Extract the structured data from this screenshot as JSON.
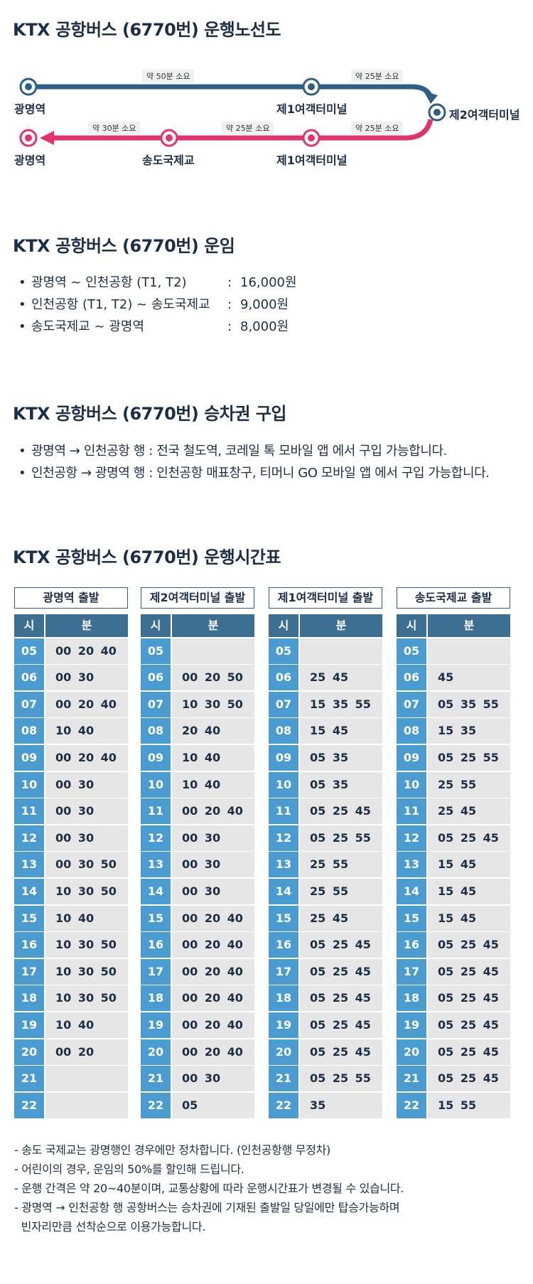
{
  "route": {
    "title": "KTX 공항버스 (6770번) 운행노선도",
    "colors": {
      "outbound": "#2e5f84",
      "inbound": "#e2336b"
    },
    "top": {
      "stations": [
        "광명역",
        "제1여객터미널"
      ],
      "durations": [
        "약 50분 소요",
        "약 25분 소요"
      ]
    },
    "terminal": "제2여객터미널",
    "bottom": {
      "stations": [
        "광명역",
        "송도국제교",
        "제1여객터미널"
      ],
      "durations": [
        "약 30분 소요",
        "약 25분 소요",
        "약 25분 소요"
      ]
    }
  },
  "fare": {
    "title": "KTX 공항버스 (6770번) 운임",
    "bullet": "•",
    "colon": ":",
    "items": [
      {
        "route": "광명역 ~ 인천공항 (T1, T2)",
        "price": "16,000원"
      },
      {
        "route": "인천공항 (T1, T2) ~ 송도국제교",
        "price": "9,000원"
      },
      {
        "route": "송도국제교 ~ 광명역",
        "price": "8,000원"
      }
    ]
  },
  "ticket": {
    "title": "KTX 공항버스 (6770번) 승차권 구입",
    "bullet": "•",
    "items": [
      "광명역 → 인천공항 행 : 전국 철도역, 코레일 톡 모바일 앱 에서 구입 가능합니다.",
      "인천공항 → 광명역 행 : 인천공항 매표창구, 티머니 GO 모바일 앱 에서 구입 가능합니다."
    ]
  },
  "timetable": {
    "title": "KTX 공항버스 (6770번) 운행시간표",
    "hour_header": "시",
    "minute_header": "분",
    "hours": [
      "05",
      "06",
      "07",
      "08",
      "09",
      "10",
      "11",
      "12",
      "13",
      "14",
      "15",
      "16",
      "17",
      "18",
      "19",
      "20",
      "21",
      "22"
    ],
    "tables": [
      {
        "title": "광명역 출발",
        "minutes": [
          "00 20 40",
          "00 30",
          "00 20 40",
          "10 40",
          "00 20 40",
          "00 30",
          "00 30",
          "00 30",
          "00 30 50",
          "10 30 50",
          "10 40",
          "10 30 50",
          "10 30 50",
          "10 30 50",
          "10 40",
          "00 20",
          "",
          ""
        ]
      },
      {
        "title": "제2여객터미널 출발",
        "minutes": [
          "",
          "00 20 50",
          "10 30 50",
          "20 40",
          "10 40",
          "10 40",
          "00 20 40",
          "00 30",
          "00 30",
          "00 30",
          "00 20 40",
          "00 20 40",
          "00 20 40",
          "00 20 40",
          "00 20 40",
          "00 20 40",
          "00 30",
          "05"
        ]
      },
      {
        "title": "제1여객터미널 출발",
        "minutes": [
          "",
          "25 45",
          "15 35 55",
          "15 45",
          "05 35",
          "05 35",
          "05 25 45",
          "05 25 55",
          "25 55",
          "25 55",
          "25 45",
          "05 25 45",
          "05 25 45",
          "05 25 45",
          "05 25 45",
          "05 25 45",
          "05 25 55",
          "35"
        ]
      },
      {
        "title": "송도국제교 출발",
        "minutes": [
          "",
          "45",
          "05 35 55",
          "15 35",
          "05 25 55",
          "25 55",
          "25 45",
          "05 25 45",
          "15 45",
          "15 45",
          "15 45",
          "05 25 45",
          "05 25 45",
          "05 25 45",
          "05 25 45",
          "05 25 45",
          "05 25 45",
          "15 55"
        ]
      }
    ]
  },
  "notes": [
    "- 송도 국제교는 광명행인 경우에만 정차합니다. (인천공항행 무정차)",
    "- 어린이의 경우, 운임의 50%를 할인해 드립니다.",
    "- 운행 간격은 약 20~40분이며, 교통상황에 따라 운행시간표가 변경될 수 있습니다.",
    "- 광명역 → 인천공항 행 공항버스는 승차권에 기재된 출발일 당일에만 탑승가능하며",
    "  빈자리만큼 선착순으로 이용가능합니다."
  ]
}
